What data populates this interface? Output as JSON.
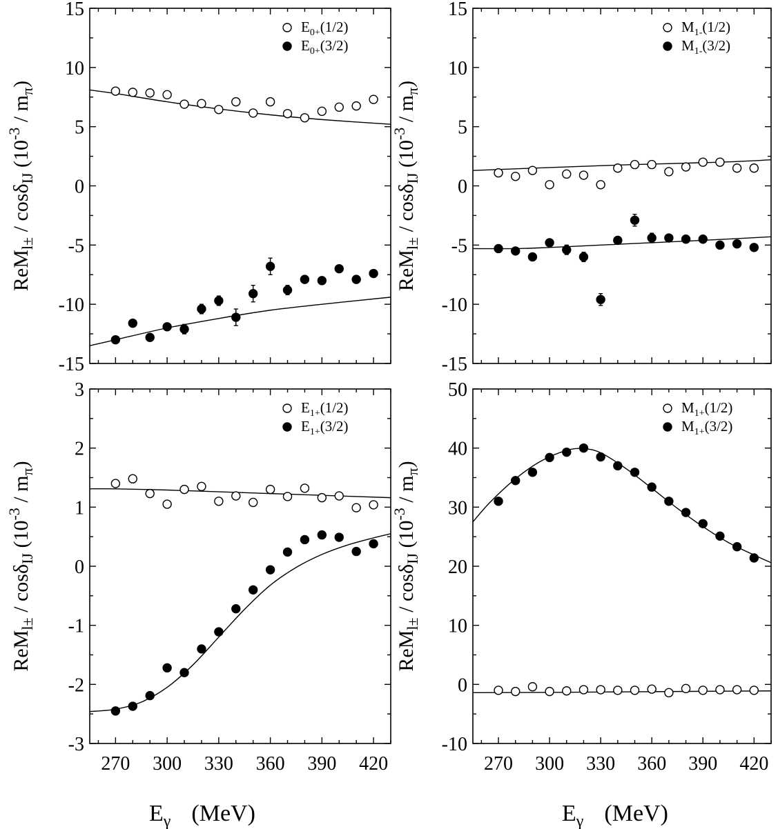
{
  "figure": {
    "xlabel_main": "E",
    "xlabel_sub": "γ",
    "xlabel_unit": "(MeV)",
    "ylabel_parts": {
      "re": "ReM",
      "l": "l",
      "pm": "±",
      "slash": " / ",
      "cos": "cosδ",
      "ij": "IJ",
      "paren_open": "  (10",
      "exp": "-3",
      "mid": " / m",
      "pi": "π",
      "paren_close": ")"
    }
  },
  "chart_data": [
    {
      "type": "scatter",
      "panel": "top-left",
      "xlim": [
        255,
        430
      ],
      "ylim": [
        -15,
        15
      ],
      "xticks": [
        270,
        300,
        330,
        360,
        390,
        420
      ],
      "yticks": [
        15,
        10,
        5,
        0,
        -5,
        -10,
        -15
      ],
      "ytick_labels": [
        "15",
        "10",
        "5",
        "0",
        "-5",
        "-10",
        "-15"
      ],
      "legend_position": "top-right",
      "series": [
        {
          "name": "E0+(1/2)",
          "name_main": "E",
          "name_sub": "0+",
          "name_rest": "(1/2)",
          "marker": "open",
          "x": [
            270,
            280,
            290,
            300,
            310,
            320,
            330,
            340,
            350,
            360,
            370,
            380,
            390,
            400,
            410,
            420
          ],
          "y": [
            8.0,
            7.9,
            7.85,
            7.7,
            6.9,
            6.95,
            6.45,
            7.1,
            6.15,
            7.1,
            6.1,
            5.75,
            6.3,
            6.65,
            6.75,
            7.3
          ],
          "err": [
            0,
            0,
            0,
            0,
            0,
            0,
            0,
            0,
            0,
            0,
            0,
            0,
            0,
            0,
            0,
            0
          ]
        },
        {
          "name": "E0+(3/2)",
          "name_main": "E",
          "name_sub": "0+",
          "name_rest": "(3/2)",
          "marker": "filled",
          "x": [
            270,
            280,
            290,
            300,
            310,
            320,
            330,
            340,
            350,
            360,
            370,
            380,
            390,
            400,
            410,
            420
          ],
          "y": [
            -13.0,
            -11.6,
            -12.8,
            -11.9,
            -12.1,
            -10.4,
            -9.7,
            -11.1,
            -9.1,
            -6.8,
            -8.8,
            -7.9,
            -8.0,
            -7.0,
            -7.9,
            -7.4
          ],
          "err": [
            0,
            0,
            0,
            0.3,
            0.4,
            0.4,
            0.4,
            0.7,
            0.7,
            0.7,
            0.4,
            0.3,
            0,
            0,
            0,
            0
          ]
        }
      ],
      "curves": [
        {
          "x": [
            255,
            270,
            300,
            330,
            360,
            390,
            430
          ],
          "y": [
            8.1,
            7.8,
            7.1,
            6.5,
            6.0,
            5.6,
            5.2
          ]
        },
        {
          "x": [
            255,
            270,
            300,
            330,
            360,
            390,
            430
          ],
          "y": [
            -13.5,
            -13.0,
            -12.0,
            -11.2,
            -10.5,
            -10.0,
            -9.4
          ]
        }
      ]
    },
    {
      "type": "scatter",
      "panel": "top-right",
      "xlim": [
        255,
        430
      ],
      "ylim": [
        -15,
        15
      ],
      "xticks": [
        270,
        300,
        330,
        360,
        390,
        420
      ],
      "yticks": [
        15,
        10,
        5,
        0,
        -5,
        -10,
        -15
      ],
      "ytick_labels": [
        "15",
        "10",
        "5",
        "0",
        "-5",
        "-10",
        "-15"
      ],
      "legend_position": "top-right",
      "series": [
        {
          "name": "M1-(1/2)",
          "name_main": "M",
          "name_sub": "1-",
          "name_rest": "(1/2)",
          "marker": "open",
          "x": [
            270,
            280,
            290,
            300,
            310,
            320,
            330,
            340,
            350,
            360,
            370,
            380,
            390,
            400,
            410,
            420
          ],
          "y": [
            1.1,
            0.8,
            1.3,
            0.1,
            1.0,
            0.9,
            0.1,
            1.5,
            1.8,
            1.8,
            1.2,
            1.6,
            2.0,
            2.0,
            1.5,
            1.5
          ],
          "err": [
            0,
            0,
            0,
            0,
            0,
            0,
            0,
            0,
            0,
            0,
            0,
            0,
            0,
            0,
            0,
            0
          ]
        },
        {
          "name": "M1-(3/2)",
          "name_main": "M",
          "name_sub": "1-",
          "name_rest": "(3/2)",
          "marker": "filled",
          "x": [
            270,
            280,
            290,
            300,
            310,
            320,
            330,
            340,
            350,
            360,
            370,
            380,
            390,
            400,
            410,
            420
          ],
          "y": [
            -5.3,
            -5.5,
            -6.0,
            -4.8,
            -5.4,
            -6.0,
            -9.6,
            -4.6,
            -2.9,
            -4.4,
            -4.4,
            -4.5,
            -4.5,
            -5.0,
            -4.9,
            -5.2
          ],
          "err": [
            0,
            0,
            0,
            0,
            0.4,
            0.4,
            0.5,
            0,
            0.5,
            0.4,
            0,
            0,
            0,
            0,
            0,
            0
          ]
        }
      ],
      "curves": [
        {
          "x": [
            255,
            300,
            350,
            400,
            430
          ],
          "y": [
            1.3,
            1.55,
            1.8,
            2.0,
            2.2
          ]
        },
        {
          "x": [
            255,
            280,
            300,
            330,
            360,
            390,
            430
          ],
          "y": [
            -5.3,
            -5.3,
            -5.2,
            -5.0,
            -4.8,
            -4.6,
            -4.3
          ]
        }
      ]
    },
    {
      "type": "scatter",
      "panel": "bottom-left",
      "xlim": [
        255,
        430
      ],
      "ylim": [
        -3,
        3
      ],
      "xticks": [
        270,
        300,
        330,
        360,
        390,
        420
      ],
      "yticks": [
        3,
        2,
        1,
        0,
        -1,
        -2,
        -3
      ],
      "ytick_labels": [
        "3",
        "2",
        "1",
        "0",
        "-1",
        "-2",
        "-3"
      ],
      "legend_position": "top-right",
      "series": [
        {
          "name": "E1+(1/2)",
          "name_main": "E",
          "name_sub": "1+",
          "name_rest": "(1/2)",
          "marker": "open",
          "x": [
            270,
            280,
            290,
            300,
            310,
            320,
            330,
            340,
            350,
            360,
            370,
            380,
            390,
            400,
            410,
            420
          ],
          "y": [
            1.4,
            1.48,
            1.23,
            1.05,
            1.3,
            1.35,
            1.1,
            1.19,
            1.08,
            1.3,
            1.18,
            1.32,
            1.16,
            1.19,
            0.99,
            1.04
          ],
          "err": [
            0.04,
            0.04,
            0.04,
            0.04,
            0.04,
            0.04,
            0.04,
            0.04,
            0.04,
            0.04,
            0.04,
            0.04,
            0.04,
            0.04,
            0.04,
            0.04
          ]
        },
        {
          "name": "E1+(3/2)",
          "name_main": "E",
          "name_sub": "1+",
          "name_rest": "(3/2)",
          "marker": "filled",
          "x": [
            270,
            280,
            290,
            300,
            310,
            320,
            330,
            340,
            350,
            360,
            370,
            380,
            390,
            400,
            410,
            420
          ],
          "y": [
            -2.45,
            -2.37,
            -2.19,
            -1.72,
            -1.8,
            -1.4,
            -1.11,
            -0.72,
            -0.4,
            -0.06,
            0.24,
            0.45,
            0.53,
            0.49,
            0.25,
            0.38
          ],
          "err": [
            0,
            0,
            0,
            0,
            0,
            0,
            0,
            0,
            0,
            0,
            0,
            0,
            0,
            0,
            0,
            0
          ]
        }
      ],
      "curves": [
        {
          "x": [
            255,
            270,
            300,
            330,
            360,
            390,
            430
          ],
          "y": [
            1.31,
            1.31,
            1.29,
            1.26,
            1.23,
            1.2,
            1.16
          ]
        },
        {
          "x": [
            255,
            270,
            285,
            300,
            315,
            330,
            345,
            360,
            375,
            390,
            405,
            420,
            430
          ],
          "y": [
            -2.46,
            -2.42,
            -2.3,
            -2.05,
            -1.67,
            -1.2,
            -0.73,
            -0.32,
            -0.02,
            0.2,
            0.36,
            0.48,
            0.55
          ]
        }
      ]
    },
    {
      "type": "scatter",
      "panel": "bottom-right",
      "xlim": [
        255,
        430
      ],
      "ylim": [
        -10,
        50
      ],
      "xticks": [
        270,
        300,
        330,
        360,
        390,
        420
      ],
      "yticks": [
        50,
        40,
        30,
        20,
        10,
        0,
        -10
      ],
      "ytick_labels": [
        "50",
        "40",
        "30",
        "20",
        "10",
        "0",
        "-10"
      ],
      "legend_position": "top-right",
      "series": [
        {
          "name": "M1+(1/2)",
          "name_main": "M",
          "name_sub": "1+",
          "name_rest": "(1/2)",
          "marker": "open",
          "x": [
            270,
            280,
            290,
            300,
            310,
            320,
            330,
            340,
            350,
            360,
            370,
            380,
            390,
            400,
            410,
            420
          ],
          "y": [
            -1.0,
            -1.2,
            -0.4,
            -1.2,
            -1.1,
            -0.9,
            -0.9,
            -1.0,
            -1.0,
            -0.8,
            -1.4,
            -0.7,
            -1.0,
            -0.9,
            -0.9,
            -1.0
          ],
          "err": [
            0,
            0,
            0,
            0,
            0,
            0,
            0,
            0,
            0,
            0,
            0,
            0,
            0,
            0,
            0,
            0
          ]
        },
        {
          "name": "M1+(3/2)",
          "name_main": "M",
          "name_sub": "1+",
          "name_rest": "(3/2)",
          "marker": "filled",
          "x": [
            270,
            280,
            290,
            300,
            310,
            320,
            330,
            340,
            350,
            360,
            370,
            380,
            390,
            400,
            410,
            420
          ],
          "y": [
            31.0,
            34.5,
            35.9,
            38.4,
            39.3,
            40.0,
            38.5,
            37.0,
            35.9,
            33.4,
            31.0,
            29.1,
            27.2,
            25.1,
            23.3,
            21.4
          ],
          "err": [
            0,
            0,
            0,
            0,
            0,
            0,
            0,
            0,
            0,
            0,
            0,
            0,
            0,
            0,
            0,
            0
          ]
        }
      ],
      "curves": [
        {
          "x": [
            255,
            300,
            350,
            400,
            430
          ],
          "y": [
            -1.4,
            -1.35,
            -1.25,
            -1.15,
            -1.1
          ]
        },
        {
          "x": [
            255,
            265,
            280,
            295,
            310,
            320,
            330,
            345,
            360,
            375,
            390,
            405,
            420,
            430
          ],
          "y": [
            27.5,
            30.8,
            34.8,
            37.8,
            39.6,
            39.9,
            39.2,
            36.5,
            33.2,
            29.8,
            26.7,
            24.0,
            21.9,
            20.6
          ]
        }
      ]
    }
  ]
}
